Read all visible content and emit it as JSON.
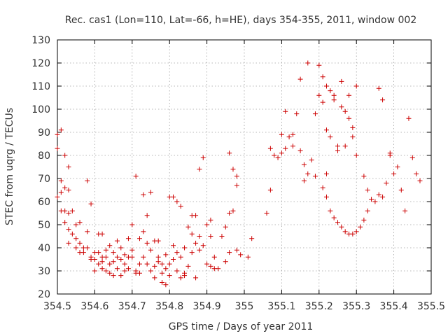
{
  "chart_data": {
    "type": "scatter",
    "title": "Rec. cas1 (Lon=110, Lat=-66, h=HE), days 354-355, 2011, window 002",
    "xlabel": "GPS time / Days of year 2011",
    "ylabel": "STEC from uqrg / TECUs",
    "xlim": [
      354.5,
      355.5
    ],
    "ylim": [
      20,
      130
    ],
    "xticks": [
      354.5,
      354.6,
      354.7,
      354.8,
      354.9,
      355.0,
      355.1,
      355.2,
      355.3,
      355.4,
      355.5
    ],
    "xtick_labels": [
      "354.5",
      "354.6",
      "354.7",
      "354.8",
      "354.9",
      "355",
      "355.1",
      "355.2",
      "355.3",
      "355.4",
      "355.5"
    ],
    "yticks": [
      20,
      30,
      40,
      50,
      60,
      70,
      80,
      90,
      100,
      110,
      120,
      130
    ],
    "ytick_labels": [
      "20",
      "30",
      "40",
      "50",
      "60",
      "70",
      "80",
      "90",
      "100",
      "110",
      "120",
      "130"
    ],
    "grid": true,
    "marker": "+",
    "color": "#cc0000",
    "series": [
      {
        "name": "",
        "points": [
          [
            354.5,
            89
          ],
          [
            354.51,
            91
          ],
          [
            354.5,
            83
          ],
          [
            354.51,
            69
          ],
          [
            354.52,
            80
          ],
          [
            354.52,
            66
          ],
          [
            354.53,
            75
          ],
          [
            354.53,
            65
          ],
          [
            354.5,
            62
          ],
          [
            354.51,
            64
          ],
          [
            354.52,
            56
          ],
          [
            354.53,
            55
          ],
          [
            354.54,
            56
          ],
          [
            354.51,
            56
          ],
          [
            354.52,
            51
          ],
          [
            354.53,
            48
          ],
          [
            354.54,
            46
          ],
          [
            354.53,
            42
          ],
          [
            354.55,
            50
          ],
          [
            354.55,
            44
          ],
          [
            354.56,
            51
          ],
          [
            354.56,
            42
          ],
          [
            354.57,
            40
          ],
          [
            354.58,
            40
          ],
          [
            354.58,
            69
          ],
          [
            354.59,
            59
          ],
          [
            354.59,
            35
          ],
          [
            354.6,
            38
          ],
          [
            354.61,
            46
          ],
          [
            354.62,
            46
          ],
          [
            354.6,
            35
          ],
          [
            354.61,
            33
          ],
          [
            354.62,
            36
          ],
          [
            354.62,
            34
          ],
          [
            354.63,
            36
          ],
          [
            354.63,
            30
          ],
          [
            354.64,
            33
          ],
          [
            354.64,
            29
          ],
          [
            354.65,
            28
          ],
          [
            354.65,
            38
          ],
          [
            354.66,
            43
          ],
          [
            354.66,
            36
          ],
          [
            354.67,
            35
          ],
          [
            354.67,
            28
          ],
          [
            354.68,
            30
          ],
          [
            354.68,
            37
          ],
          [
            354.69,
            44
          ],
          [
            354.69,
            36
          ],
          [
            354.7,
            50
          ],
          [
            354.7,
            39
          ],
          [
            354.71,
            71
          ],
          [
            354.71,
            30
          ],
          [
            354.72,
            29
          ],
          [
            354.72,
            44
          ],
          [
            354.73,
            63
          ],
          [
            354.73,
            47
          ],
          [
            354.74,
            54
          ],
          [
            354.74,
            42
          ],
          [
            354.75,
            64
          ],
          [
            354.75,
            39
          ],
          [
            354.76,
            43
          ],
          [
            354.76,
            27
          ],
          [
            354.77,
            43
          ],
          [
            354.77,
            34
          ],
          [
            354.78,
            29
          ],
          [
            354.78,
            25
          ],
          [
            354.79,
            24
          ],
          [
            354.79,
            37
          ],
          [
            354.8,
            62
          ],
          [
            354.8,
            33
          ],
          [
            354.81,
            62
          ],
          [
            354.81,
            41
          ],
          [
            354.82,
            60
          ],
          [
            354.82,
            30
          ],
          [
            354.83,
            58
          ],
          [
            354.83,
            36
          ],
          [
            354.84,
            40
          ],
          [
            354.84,
            28
          ],
          [
            354.85,
            49
          ],
          [
            354.85,
            32
          ],
          [
            354.86,
            54
          ],
          [
            354.86,
            46
          ],
          [
            354.87,
            54
          ],
          [
            354.87,
            27
          ],
          [
            354.88,
            74
          ],
          [
            354.88,
            45
          ],
          [
            354.89,
            79
          ],
          [
            354.89,
            41
          ],
          [
            354.9,
            50
          ],
          [
            354.9,
            33
          ],
          [
            354.91,
            52
          ],
          [
            354.91,
            32
          ],
          [
            354.92,
            36
          ],
          [
            354.93,
            31
          ],
          [
            354.94,
            45
          ],
          [
            354.95,
            49
          ],
          [
            354.95,
            34
          ],
          [
            354.96,
            81
          ],
          [
            354.96,
            38
          ],
          [
            354.97,
            74
          ],
          [
            354.97,
            56
          ],
          [
            354.98,
            71
          ],
          [
            354.98,
            67
          ],
          [
            354.99,
            37
          ],
          [
            355.01,
            36
          ],
          [
            355.02,
            44
          ],
          [
            355.06,
            55
          ],
          [
            355.07,
            65
          ],
          [
            355.07,
            83
          ],
          [
            355.08,
            80
          ],
          [
            355.09,
            79
          ],
          [
            355.1,
            89
          ],
          [
            355.1,
            81
          ],
          [
            355.11,
            99
          ],
          [
            355.11,
            83
          ],
          [
            355.12,
            88
          ],
          [
            355.13,
            89
          ],
          [
            355.13,
            84
          ],
          [
            355.14,
            98
          ],
          [
            355.15,
            82
          ],
          [
            355.15,
            113
          ],
          [
            355.16,
            69
          ],
          [
            355.16,
            76
          ],
          [
            355.17,
            120
          ],
          [
            355.17,
            72
          ],
          [
            355.18,
            78
          ],
          [
            355.19,
            71
          ],
          [
            355.19,
            98
          ],
          [
            355.2,
            106
          ],
          [
            355.2,
            119
          ],
          [
            355.21,
            103
          ],
          [
            355.21,
            114
          ],
          [
            355.22,
            110
          ],
          [
            355.22,
            91
          ],
          [
            355.23,
            88
          ],
          [
            355.23,
            108
          ],
          [
            355.24,
            106
          ],
          [
            355.24,
            104
          ],
          [
            355.25,
            82
          ],
          [
            355.25,
            84
          ],
          [
            355.26,
            101
          ],
          [
            355.26,
            112
          ],
          [
            355.27,
            99
          ],
          [
            355.27,
            84
          ],
          [
            355.28,
            106
          ],
          [
            355.28,
            96
          ],
          [
            355.29,
            92
          ],
          [
            355.29,
            88
          ],
          [
            355.3,
            110
          ],
          [
            355.3,
            80
          ],
          [
            355.22,
            72
          ],
          [
            355.21,
            66
          ],
          [
            355.22,
            62
          ],
          [
            355.23,
            56
          ],
          [
            355.24,
            53
          ],
          [
            355.25,
            51
          ],
          [
            355.26,
            49
          ],
          [
            355.27,
            47
          ],
          [
            355.28,
            46
          ],
          [
            355.29,
            46
          ],
          [
            355.3,
            47
          ],
          [
            355.31,
            49
          ],
          [
            355.32,
            52
          ],
          [
            355.33,
            56
          ],
          [
            355.34,
            61
          ],
          [
            355.35,
            60
          ],
          [
            355.36,
            63
          ],
          [
            355.37,
            62
          ],
          [
            355.38,
            68
          ],
          [
            355.39,
            80
          ],
          [
            355.4,
            72
          ],
          [
            355.41,
            75
          ],
          [
            355.42,
            65
          ],
          [
            355.43,
            56
          ],
          [
            355.44,
            96
          ],
          [
            355.45,
            79
          ],
          [
            355.46,
            72
          ],
          [
            355.47,
            69
          ],
          [
            355.36,
            109
          ],
          [
            355.37,
            104
          ],
          [
            355.39,
            81
          ],
          [
            355.32,
            71
          ],
          [
            355.33,
            65
          ],
          [
            354.98,
            39
          ],
          [
            354.96,
            55
          ],
          [
            354.92,
            31
          ],
          [
            354.91,
            45
          ],
          [
            354.88,
            39
          ],
          [
            354.87,
            42
          ],
          [
            354.86,
            38
          ],
          [
            354.84,
            29
          ],
          [
            354.83,
            27
          ],
          [
            354.82,
            38
          ],
          [
            354.81,
            35
          ],
          [
            354.8,
            28
          ],
          [
            354.79,
            31
          ],
          [
            354.78,
            33
          ],
          [
            354.77,
            36
          ],
          [
            354.76,
            32
          ],
          [
            354.75,
            30
          ],
          [
            354.74,
            33
          ],
          [
            354.73,
            36
          ],
          [
            354.72,
            33
          ],
          [
            354.71,
            29
          ],
          [
            354.7,
            36
          ],
          [
            354.69,
            31
          ],
          [
            354.68,
            33
          ],
          [
            354.67,
            40
          ],
          [
            354.66,
            31
          ],
          [
            354.65,
            34
          ],
          [
            354.64,
            41
          ],
          [
            354.63,
            39
          ],
          [
            354.62,
            31
          ],
          [
            354.61,
            38
          ],
          [
            354.6,
            30
          ],
          [
            354.59,
            36
          ],
          [
            354.58,
            47
          ],
          [
            354.57,
            38
          ],
          [
            354.56,
            38
          ],
          [
            354.55,
            40
          ]
        ]
      }
    ]
  }
}
